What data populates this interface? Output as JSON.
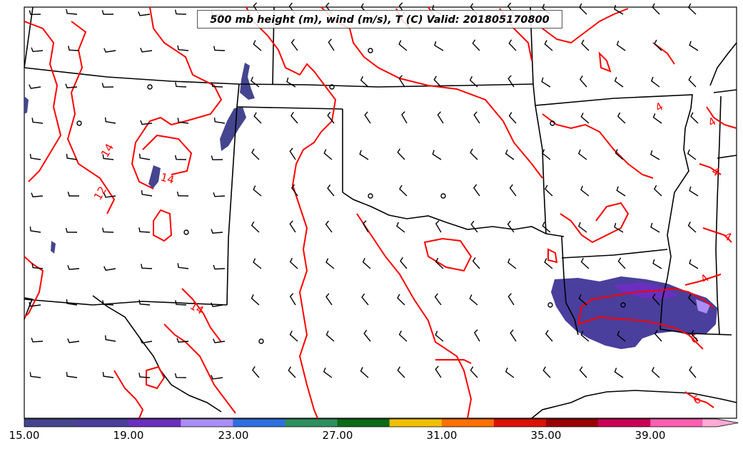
{
  "title": "500 mb height (m), wind (m/s), T (C) Valid: 201805170800",
  "colorbar": {
    "tick_labels": [
      "15.00",
      "19.00",
      "23.00",
      "27.00",
      "31.00",
      "35.00",
      "39.00"
    ],
    "colors": [
      "#45458f",
      "#4b3d9a",
      "#6a2fbf",
      "#a98ef5",
      "#2f6fe0",
      "#2e8f5e",
      "#0b6b16",
      "#f0c000",
      "#ff7000",
      "#dd1100",
      "#990000",
      "#cc0055",
      "#ff5fb0",
      "#ffaad4"
    ]
  },
  "contour_labels": [
    "14",
    "12",
    "14",
    "14",
    "4",
    "4",
    "4",
    "4",
    "4",
    "6",
    "6"
  ],
  "colors": {
    "contour": "#ff0000",
    "boundary": "#000000",
    "barb": "#000000"
  }
}
